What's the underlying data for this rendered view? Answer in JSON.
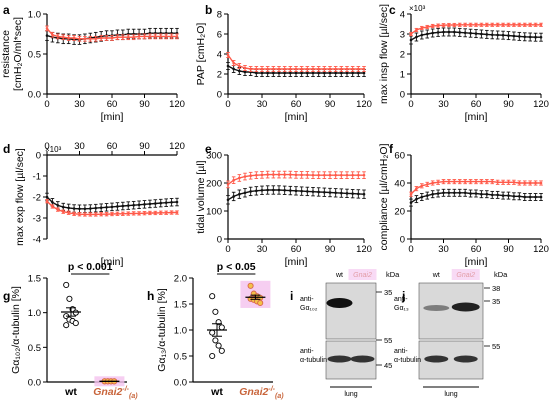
{
  "colors": {
    "wt": "#111111",
    "gnai2": "#ff5a4a",
    "gnai2_dot_fill": "#f2c24a",
    "gnai2_dot_edge": "#d9664a",
    "highlight": "#f4c2ee",
    "blot_bg": "#d9d9d9"
  },
  "panel_letters": [
    "a",
    "b",
    "c",
    "d",
    "e",
    "f",
    "g",
    "h",
    "i",
    "j"
  ],
  "common": {
    "xlabel": "[min]",
    "xticks": [
      0,
      30,
      60,
      90,
      120
    ]
  },
  "chart_data": [
    {
      "id": "a",
      "type": "line",
      "xlabel": "[min]",
      "ylabel_lines": [
        "resistance",
        "[cmH₂O/ml*sec]"
      ],
      "xlim": [
        0,
        120
      ],
      "ylim": [
        0,
        1.0
      ],
      "yticks": [
        0,
        0.5,
        1.0
      ],
      "ytick_labels": [
        "0.0",
        "0.5",
        "1.0"
      ],
      "series": [
        {
          "key": "gnai2",
          "x": [
            0,
            5,
            10,
            15,
            20,
            25,
            30,
            35,
            40,
            45,
            50,
            55,
            60,
            65,
            70,
            75,
            80,
            85,
            90,
            95,
            100,
            105,
            110,
            115,
            120
          ],
          "y": [
            0.82,
            0.74,
            0.72,
            0.71,
            0.7,
            0.7,
            0.69,
            0.69,
            0.69,
            0.69,
            0.7,
            0.7,
            0.7,
            0.71,
            0.71,
            0.71,
            0.71,
            0.72,
            0.72,
            0.72,
            0.72,
            0.72,
            0.72,
            0.72,
            0.72
          ],
          "err": 0.03
        },
        {
          "key": "wt",
          "x": [
            0,
            5,
            10,
            15,
            20,
            25,
            30,
            35,
            40,
            45,
            50,
            55,
            60,
            65,
            70,
            75,
            80,
            85,
            90,
            95,
            100,
            105,
            110,
            115,
            120
          ],
          "y": [
            0.73,
            0.71,
            0.7,
            0.69,
            0.69,
            0.68,
            0.68,
            0.69,
            0.7,
            0.71,
            0.72,
            0.73,
            0.73,
            0.74,
            0.74,
            0.75,
            0.75,
            0.75,
            0.75,
            0.76,
            0.76,
            0.76,
            0.76,
            0.76,
            0.76
          ],
          "err": 0.06
        }
      ]
    },
    {
      "id": "b",
      "type": "line",
      "xlabel": "[min]",
      "ylabel_lines": [
        "PAP [cmH₂O]"
      ],
      "xlim": [
        0,
        120
      ],
      "ylim": [
        0,
        8
      ],
      "yticks": [
        0,
        2,
        4,
        6,
        8
      ],
      "ytick_labels": [
        "0",
        "2",
        "4",
        "6",
        "8"
      ],
      "series": [
        {
          "key": "gnai2",
          "x": [
            0,
            5,
            10,
            15,
            20,
            25,
            30,
            35,
            40,
            45,
            50,
            55,
            60,
            65,
            70,
            75,
            80,
            85,
            90,
            95,
            100,
            105,
            110,
            115,
            120
          ],
          "y": [
            3.9,
            3.1,
            2.8,
            2.6,
            2.5,
            2.5,
            2.5,
            2.5,
            2.5,
            2.5,
            2.5,
            2.5,
            2.5,
            2.5,
            2.5,
            2.5,
            2.5,
            2.5,
            2.5,
            2.5,
            2.5,
            2.5,
            2.5,
            2.5,
            2.5
          ],
          "err": 0.25
        },
        {
          "key": "wt",
          "x": [
            0,
            5,
            10,
            15,
            20,
            25,
            30,
            35,
            40,
            45,
            50,
            55,
            60,
            65,
            70,
            75,
            80,
            85,
            90,
            95,
            100,
            105,
            110,
            115,
            120
          ],
          "y": [
            2.8,
            2.5,
            2.3,
            2.2,
            2.2,
            2.1,
            2.1,
            2.1,
            2.1,
            2.1,
            2.1,
            2.1,
            2.1,
            2.1,
            2.1,
            2.1,
            2.1,
            2.1,
            2.1,
            2.1,
            2.1,
            2.1,
            2.1,
            2.1,
            2.1
          ],
          "err": 0.35
        }
      ]
    },
    {
      "id": "c",
      "type": "line",
      "xlabel": "[min]",
      "ylabel_lines": [
        "max insp flow [µl/sec]"
      ],
      "exponent": "×10³",
      "xlim": [
        0,
        120
      ],
      "ylim": [
        0,
        4
      ],
      "yticks": [
        0,
        1,
        2,
        3,
        4
      ],
      "ytick_labels": [
        "0",
        "1",
        "2",
        "3",
        "4"
      ],
      "series": [
        {
          "key": "gnai2",
          "x": [
            0,
            5,
            10,
            15,
            20,
            25,
            30,
            35,
            40,
            45,
            50,
            55,
            60,
            65,
            70,
            75,
            80,
            85,
            90,
            95,
            100,
            105,
            110,
            115,
            120
          ],
          "y": [
            3.0,
            3.2,
            3.3,
            3.35,
            3.4,
            3.42,
            3.44,
            3.45,
            3.45,
            3.46,
            3.46,
            3.46,
            3.46,
            3.46,
            3.46,
            3.46,
            3.46,
            3.46,
            3.46,
            3.46,
            3.46,
            3.46,
            3.46,
            3.46,
            3.46
          ],
          "err": 0.08
        },
        {
          "key": "wt",
          "x": [
            0,
            5,
            10,
            15,
            20,
            25,
            30,
            35,
            40,
            45,
            50,
            55,
            60,
            65,
            70,
            75,
            80,
            85,
            90,
            95,
            100,
            105,
            110,
            115,
            120
          ],
          "y": [
            2.7,
            2.85,
            2.95,
            3.0,
            3.05,
            3.08,
            3.1,
            3.1,
            3.1,
            3.08,
            3.06,
            3.04,
            3.02,
            3.0,
            2.98,
            2.96,
            2.95,
            2.94,
            2.92,
            2.9,
            2.88,
            2.86,
            2.85,
            2.84,
            2.84
          ],
          "err": 0.2
        }
      ]
    },
    {
      "id": "d",
      "type": "line",
      "xlabel": "[min]",
      "xaxis_top": true,
      "ylabel_lines": [
        "max exp flow [µl/sec]"
      ],
      "exponent": "×10³",
      "xlim": [
        0,
        120
      ],
      "ylim": [
        -4,
        0
      ],
      "yticks": [
        -4,
        -3,
        -2,
        -1,
        0
      ],
      "ytick_labels": [
        "-4",
        "-3",
        "-2",
        "-1",
        "0"
      ],
      "series": [
        {
          "key": "gnai2",
          "x": [
            0,
            5,
            10,
            15,
            20,
            25,
            30,
            35,
            40,
            45,
            50,
            55,
            60,
            65,
            70,
            75,
            80,
            85,
            90,
            95,
            100,
            105,
            110,
            115,
            120
          ],
          "y": [
            -2.2,
            -2.45,
            -2.6,
            -2.7,
            -2.75,
            -2.8,
            -2.82,
            -2.83,
            -2.83,
            -2.83,
            -2.82,
            -2.82,
            -2.81,
            -2.8,
            -2.8,
            -2.79,
            -2.78,
            -2.78,
            -2.77,
            -2.76,
            -2.76,
            -2.75,
            -2.75,
            -2.74,
            -2.74
          ],
          "err": 0.08
        },
        {
          "key": "wt",
          "x": [
            0,
            5,
            10,
            15,
            20,
            25,
            30,
            35,
            40,
            45,
            50,
            55,
            60,
            65,
            70,
            75,
            80,
            85,
            90,
            95,
            100,
            105,
            110,
            115,
            120
          ],
          "y": [
            -2.0,
            -2.25,
            -2.4,
            -2.48,
            -2.52,
            -2.55,
            -2.56,
            -2.56,
            -2.55,
            -2.53,
            -2.51,
            -2.49,
            -2.47,
            -2.45,
            -2.43,
            -2.41,
            -2.39,
            -2.37,
            -2.35,
            -2.33,
            -2.31,
            -2.29,
            -2.27,
            -2.25,
            -2.24
          ],
          "err": 0.18
        }
      ]
    },
    {
      "id": "e",
      "type": "line",
      "xlabel": "[min]",
      "ylabel_lines": [
        "tidal volume [µl]"
      ],
      "xlim": [
        0,
        120
      ],
      "ylim": [
        0,
        300
      ],
      "yticks": [
        0,
        100,
        200,
        300
      ],
      "ytick_labels": [
        "0",
        "100",
        "200",
        "300"
      ],
      "series": [
        {
          "key": "gnai2",
          "x": [
            0,
            5,
            10,
            15,
            20,
            25,
            30,
            35,
            40,
            45,
            50,
            55,
            60,
            65,
            70,
            75,
            80,
            85,
            90,
            95,
            100,
            105,
            110,
            115,
            120
          ],
          "y": [
            195,
            210,
            218,
            223,
            226,
            228,
            229,
            230,
            230,
            230,
            230,
            230,
            229,
            229,
            229,
            228,
            228,
            228,
            228,
            228,
            228,
            228,
            228,
            228,
            228
          ],
          "err": 12
        },
        {
          "key": "wt",
          "x": [
            0,
            5,
            10,
            15,
            20,
            25,
            30,
            35,
            40,
            45,
            50,
            55,
            60,
            65,
            70,
            75,
            80,
            85,
            90,
            95,
            100,
            105,
            110,
            115,
            120
          ],
          "y": [
            140,
            152,
            160,
            165,
            170,
            172,
            174,
            175,
            175,
            175,
            174,
            173,
            172,
            171,
            170,
            169,
            168,
            167,
            166,
            165,
            164,
            163,
            162,
            161,
            160
          ],
          "err": 15
        }
      ]
    },
    {
      "id": "f",
      "type": "line",
      "xlabel": "[min]",
      "ylabel_lines": [
        "compliance [µl/cmH₂O]"
      ],
      "xlim": [
        0,
        120
      ],
      "ylim": [
        0,
        60
      ],
      "yticks": [
        0,
        20,
        40,
        60
      ],
      "ytick_labels": [
        "0",
        "20",
        "40",
        "60"
      ],
      "series": [
        {
          "key": "gnai2",
          "x": [
            0,
            5,
            10,
            15,
            20,
            25,
            30,
            35,
            40,
            45,
            50,
            55,
            60,
            65,
            70,
            75,
            80,
            85,
            90,
            95,
            100,
            105,
            110,
            115,
            120
          ],
          "y": [
            32,
            36,
            38,
            39,
            40,
            40.5,
            41,
            41,
            41,
            41,
            41,
            41,
            41,
            41,
            41,
            41,
            40.5,
            40.5,
            40.5,
            40.5,
            40,
            40,
            40,
            40,
            40
          ],
          "err": 1.5
        },
        {
          "key": "wt",
          "x": [
            0,
            5,
            10,
            15,
            20,
            25,
            30,
            35,
            40,
            45,
            50,
            55,
            60,
            65,
            70,
            75,
            80,
            85,
            90,
            95,
            100,
            105,
            110,
            115,
            120
          ],
          "y": [
            26,
            28.5,
            30,
            31,
            32,
            32.5,
            33,
            33,
            33,
            33,
            33,
            32.5,
            32.5,
            32,
            32,
            31.5,
            31.5,
            31,
            31,
            30.5,
            30.5,
            30,
            30,
            30,
            30
          ],
          "err": 2.5
        }
      ]
    },
    {
      "id": "g",
      "type": "scatter",
      "ylabel_lines": [
        "Gα₁₀₂/α-tubulin [%]"
      ],
      "ylim": [
        0,
        1.5
      ],
      "yticks": [
        0,
        0.5,
        1.0,
        1.5
      ],
      "ytick_labels": [
        "0.0",
        "0.5",
        "1.0",
        "1.5"
      ],
      "categories": [
        "wt",
        "Gnai2"
      ],
      "pvalue": "p < 0.001",
      "groups": [
        {
          "key": "wt",
          "values": [
            1.4,
            1.2,
            1.05,
            1.0,
            0.95,
            0.9,
            0.88,
            0.85,
            0.82
          ],
          "mean": 1.01,
          "sem": 0.06
        },
        {
          "key": "gnai2",
          "values": [
            0.01,
            0.01,
            0.01,
            0.01,
            0.01,
            0.01,
            0.01,
            0.01
          ],
          "mean": 0.01,
          "sem": 0.0
        }
      ]
    },
    {
      "id": "h",
      "type": "scatter",
      "ylabel_lines": [
        "Gα₁₃/α-tubulin [%]"
      ],
      "ylim": [
        0,
        2.0
      ],
      "yticks": [
        0,
        0.5,
        1.0,
        1.5,
        2.0
      ],
      "ytick_labels": [
        "0.0",
        "0.5",
        "1.0",
        "1.5",
        "2.0"
      ],
      "categories": [
        "wt",
        "Gnai2"
      ],
      "pvalue": "p < 0.05",
      "groups": [
        {
          "key": "wt",
          "values": [
            1.65,
            1.35,
            1.15,
            1.05,
            0.95,
            0.8,
            0.7,
            0.6,
            0.5
          ],
          "mean": 1.0,
          "sem": 0.12
        },
        {
          "key": "gnai2",
          "values": [
            1.85,
            1.7,
            1.65,
            1.62,
            1.6,
            1.58,
            1.55,
            1.52
          ],
          "mean": 1.63,
          "sem": 0.04
        }
      ]
    }
  ],
  "blots": {
    "i": {
      "lanes": [
        "wt",
        "Gnai2"
      ],
      "kda_label": "kDa",
      "top_band_label": [
        "anti-",
        "Gα₁₀₂"
      ],
      "bottom_band_label": [
        "anti-",
        "α-tubulin"
      ],
      "kda_marks": [
        "35",
        "55",
        "45"
      ],
      "tissue": "lung"
    },
    "j": {
      "lanes": [
        "wt",
        "Gnai2"
      ],
      "kda_label": "kDa",
      "top_band_label": [
        "anti-",
        "Gα₁₃"
      ],
      "bottom_band_label": [
        "anti-",
        "α-tubulin"
      ],
      "kda_marks": [
        "38",
        "35",
        "55"
      ],
      "tissue": "lung"
    }
  },
  "gene_label": {
    "base": "Gnai2",
    "sup": "-/-",
    "sub": "(a)"
  }
}
